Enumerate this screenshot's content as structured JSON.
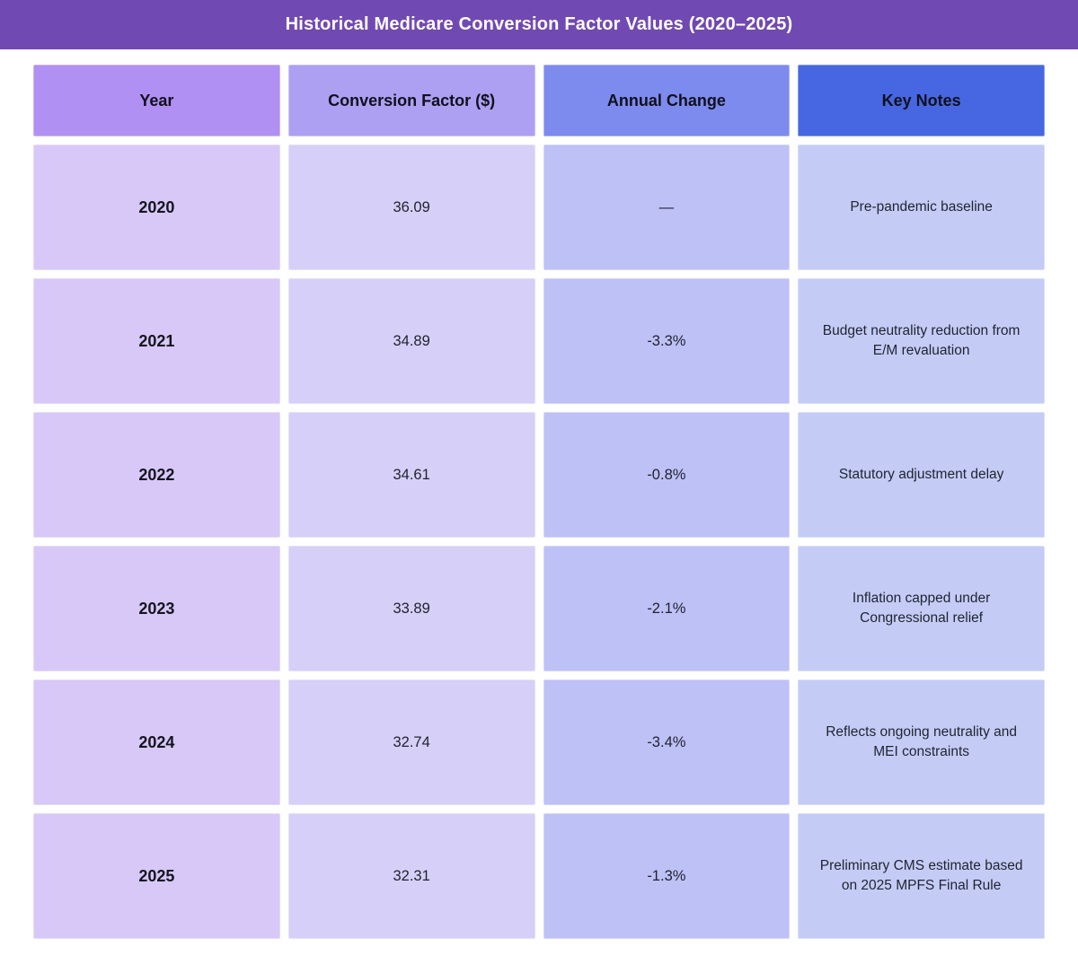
{
  "title_bar": {
    "title": "Historical Medicare Conversion Factor Values (2020–2025)"
  },
  "colors": {
    "title_bar_bg": "#7149B3",
    "header_year_bg": "#B190F3",
    "header_factor_bg": "#ADA0F3",
    "header_change_bg": "#7D8BEE",
    "header_notes_bg": "#4667E1",
    "body_year_bg": "#D8C8F7",
    "body_factor_bg": "#D6D0F8",
    "body_change_bg": "#BDC1F6",
    "body_notes_bg": "#C4CCF6"
  },
  "table": {
    "columns": [
      {
        "label": "Year"
      },
      {
        "label": "Conversion Factor ($)"
      },
      {
        "label": "Annual Change"
      },
      {
        "label": "Key Notes"
      }
    ],
    "rows": [
      {
        "year": "2020",
        "factor": "36.09",
        "change": "—",
        "notes": "Pre-pandemic baseline"
      },
      {
        "year": "2021",
        "factor": "34.89",
        "change": "-3.3%",
        "notes": "Budget neutrality reduction from E/M revaluation"
      },
      {
        "year": "2022",
        "factor": "34.61",
        "change": "-0.8%",
        "notes": "Statutory adjustment delay"
      },
      {
        "year": "2023",
        "factor": "33.89",
        "change": "-2.1%",
        "notes": "Inflation capped under Congressional relief"
      },
      {
        "year": "2024",
        "factor": "32.74",
        "change": "-3.4%",
        "notes": "Reflects ongoing neutrality and MEI constraints"
      },
      {
        "year": "2025",
        "factor": "32.31",
        "change": "-1.3%",
        "notes": "Preliminary CMS estimate based on 2025 MPFS Final Rule"
      }
    ]
  },
  "chart_data": {
    "type": "table",
    "title": "Historical Medicare Conversion Factor Values (2020–2025)",
    "columns": [
      "Year",
      "Conversion Factor ($)",
      "Annual Change",
      "Key Notes"
    ],
    "rows": [
      [
        "2020",
        "36.09",
        "—",
        "Pre-pandemic baseline"
      ],
      [
        "2021",
        "34.89",
        "-3.3%",
        "Budget neutrality reduction from E/M revaluation"
      ],
      [
        "2022",
        "34.61",
        "-0.8%",
        "Statutory adjustment delay"
      ],
      [
        "2023",
        "33.89",
        "-2.1%",
        "Inflation capped under Congressional relief"
      ],
      [
        "2024",
        "32.74",
        "-3.4%",
        "Reflects ongoing neutrality and MEI constraints"
      ],
      [
        "2025",
        "32.31",
        "-1.3%",
        "Preliminary CMS estimate based on 2025 MPFS Final Rule"
      ]
    ],
    "series": [
      {
        "name": "Conversion Factor ($)",
        "x": [
          2020,
          2021,
          2022,
          2023,
          2024,
          2025
        ],
        "values": [
          36.09,
          34.89,
          34.61,
          33.89,
          32.74,
          32.31
        ]
      },
      {
        "name": "Annual Change (%)",
        "x": [
          2021,
          2022,
          2023,
          2024,
          2025
        ],
        "values": [
          -3.3,
          -0.8,
          -2.1,
          -3.4,
          -1.3
        ]
      }
    ]
  }
}
